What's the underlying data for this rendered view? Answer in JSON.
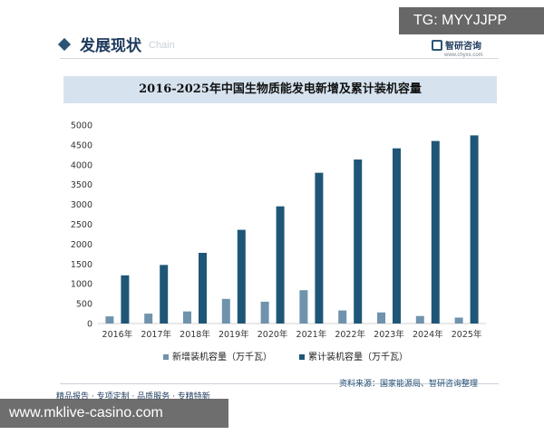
{
  "header": {
    "title": "发展现状",
    "ghost_text": "Chain",
    "brand_name": "智研咨询",
    "brand_url": "www.chyxx.com"
  },
  "overlay": {
    "tg_tag": "TG: MYYJJPP",
    "url_band": "www.mklive-casino.com"
  },
  "footer": {
    "source": "资料来源：国家能源局、智研咨询整理",
    "slogan": "精品报告 · 专项定制 · 品质服务 · 专精特新"
  },
  "colors": {
    "new_series": "#6f93ac",
    "cum_series": "#1f5677",
    "title_band": "#d6e3ef",
    "accent": "#1e3a5c"
  },
  "chart_data": {
    "type": "bar",
    "title": "2016-2025年中国生物质能发电新增及累计装机容量",
    "categories": [
      "2016年",
      "2017年",
      "2018年",
      "2019年",
      "2020年",
      "2021年",
      "2022年",
      "2023年",
      "2024年",
      "2025年"
    ],
    "series": [
      {
        "name": "新增装机容量（万千瓦）",
        "values": [
          180,
          250,
          305,
          620,
          550,
          840,
          330,
          280,
          190,
          150
        ]
      },
      {
        "name": "累计装机容量（万千瓦）",
        "values": [
          1214,
          1476,
          1781,
          2361,
          2952,
          3798,
          4132,
          4414,
          4599,
          4740
        ]
      }
    ],
    "ylim": [
      0,
      5000
    ],
    "yticks": [
      0,
      500,
      1000,
      1500,
      2000,
      2500,
      3000,
      3500,
      4000,
      4500,
      5000
    ],
    "legend_position": "bottom"
  }
}
